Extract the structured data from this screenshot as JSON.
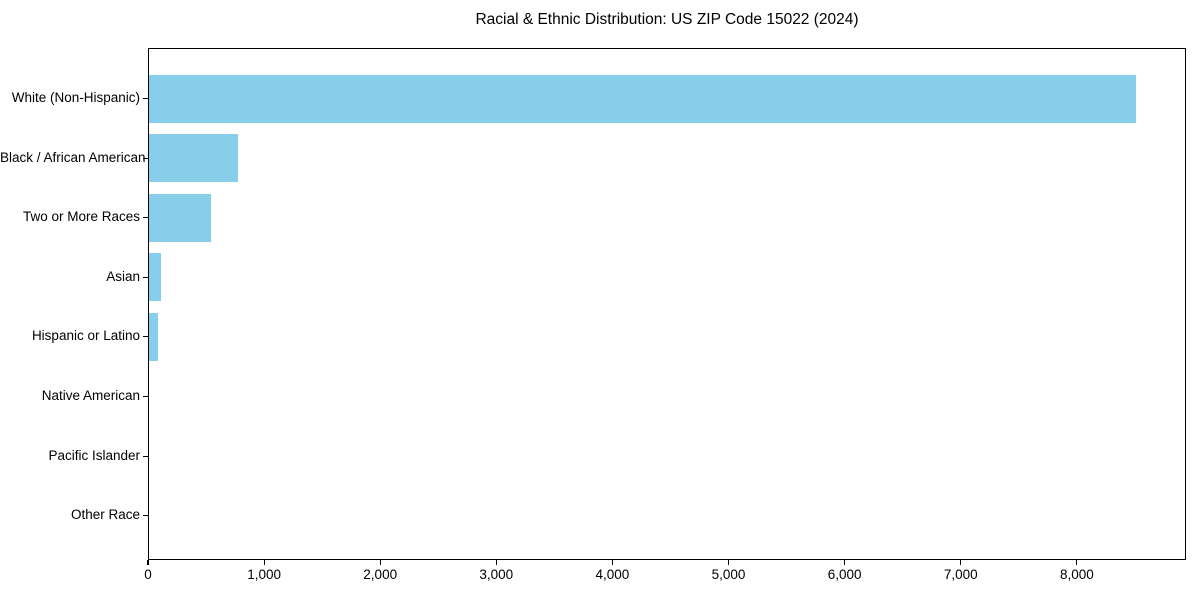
{
  "chart_data": {
    "type": "bar",
    "orientation": "horizontal",
    "title": "Racial & Ethnic Distribution: US ZIP Code 15022 (2024)",
    "xlabel": "",
    "ylabel": "",
    "categories": [
      "White (Non-Hispanic)",
      "Black / African American",
      "Two or More Races",
      "Asian",
      "Hispanic or Latino",
      "Native American",
      "Pacific Islander",
      "Other Race"
    ],
    "values": [
      8515,
      765,
      535,
      100,
      75,
      0,
      0,
      0
    ],
    "xlim": [
      0,
      8940
    ],
    "x_ticks": [
      0,
      1000,
      2000,
      3000,
      4000,
      5000,
      6000,
      7000,
      8000
    ],
    "x_tick_labels": [
      "0",
      "1,000",
      "2,000",
      "3,000",
      "4,000",
      "5,000",
      "6,000",
      "7,000",
      "8,000"
    ],
    "bar_color": "#87CEEB",
    "text_color": "#000000",
    "grid": false,
    "legend": null
  }
}
